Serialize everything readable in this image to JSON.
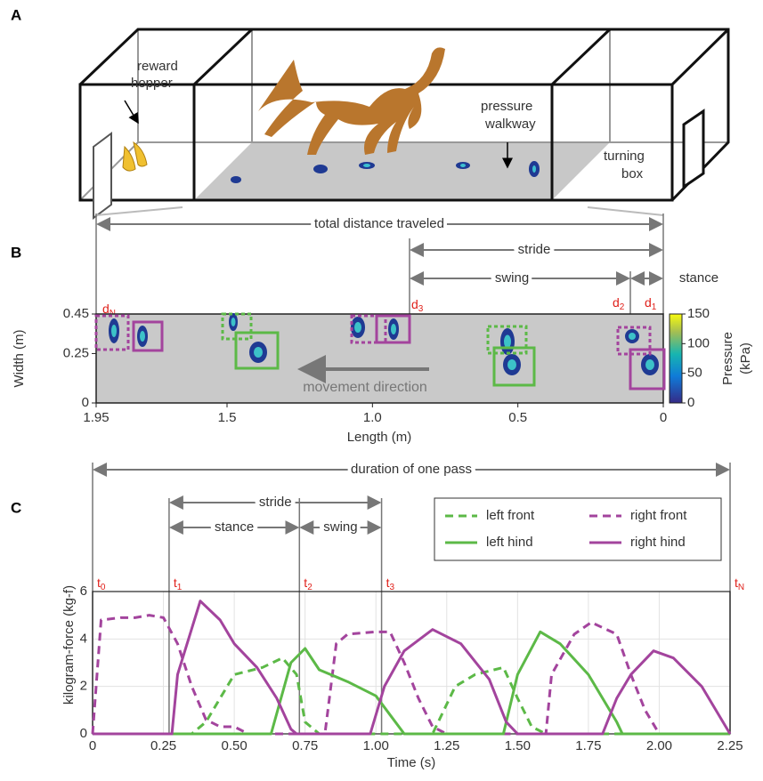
{
  "panel_a": {
    "panel_label": "A",
    "reward_hopper": [
      "reward",
      "hopper"
    ],
    "pressure_walkway": [
      "pressure",
      "walkway"
    ],
    "turning_box": [
      "turning",
      "box"
    ]
  },
  "panel_b": {
    "panel_label": "B",
    "total_distance": "total distance traveled",
    "stride": "stride",
    "swing": "swing",
    "stance": "stance",
    "markers": [
      {
        "text": "d",
        "sub": "N"
      },
      {
        "text": "d",
        "sub": "3"
      },
      {
        "text": "d",
        "sub": "2"
      },
      {
        "text": "d",
        "sub": "1"
      }
    ],
    "xlabel": "Length (m)",
    "ylabel": "Width (m)",
    "xlim": [
      1.95,
      0
    ],
    "xticks": [
      1.95,
      1.5,
      {
        "value": 1,
        "label": "1.0"
      },
      0.5,
      0
    ],
    "ylim": [
      0,
      0.45
    ],
    "yticks": [
      0,
      0.25,
      0.45
    ],
    "direction": "movement direction",
    "colorbar_label": [
      "Pressure",
      "(kPa)"
    ],
    "clim": [
      0,
      150
    ],
    "cticks": [
      0,
      50,
      100,
      150
    ]
  },
  "panel_c": {
    "panel_label": "C",
    "duration": "duration of one pass",
    "stride": "stride",
    "stance": "stance",
    "swing": "swing",
    "markers": [
      {
        "text": "t",
        "sub": "0",
        "x": 0
      },
      {
        "text": "t",
        "sub": "1",
        "x": 0.27
      },
      {
        "text": "t",
        "sub": "2",
        "x": 0.73
      },
      {
        "text": "t",
        "sub": "3",
        "x": 1.02
      },
      {
        "text": "t",
        "sub": "N",
        "x": 2.25
      }
    ]
  },
  "chart_data": {
    "type": "line",
    "xlabel": "Time (s)",
    "ylabel": "kilogram-force (kg-f)",
    "xlim": [
      0,
      2.25
    ],
    "ylim": [
      0,
      6
    ],
    "xticks": [
      0,
      0.25,
      {
        "value": 0.5,
        "label": "0.50"
      },
      0.75,
      {
        "value": 1,
        "label": "1.00"
      },
      1.25,
      {
        "value": 1.5,
        "label": "1.50"
      },
      1.75,
      {
        "value": 2,
        "label": "2.00"
      },
      2.25
    ],
    "yticks": [
      0,
      2,
      4,
      6
    ],
    "grid": true,
    "legend": "upper right",
    "series": [
      {
        "name": "left front",
        "color": "#5cb947",
        "dash": true,
        "x": [
          0,
          0.35,
          0.4,
          0.45,
          0.5,
          0.6,
          0.67,
          0.72,
          0.75,
          0.8,
          1.2,
          1.28,
          1.35,
          1.45,
          1.5,
          1.55,
          1.6,
          2.25
        ],
        "values": [
          0,
          0,
          0.5,
          1.5,
          2.5,
          2.8,
          3.2,
          2.5,
          0.5,
          0,
          0,
          2,
          2.5,
          2.8,
          1.5,
          0.3,
          0,
          0
        ]
      },
      {
        "name": "right front",
        "color": "#a3449d",
        "dash": true,
        "x": [
          0,
          0.03,
          0.1,
          0.15,
          0.2,
          0.25,
          0.3,
          0.35,
          0.4,
          0.45,
          0.5,
          0.55,
          0.82,
          0.86,
          0.9,
          1,
          1.05,
          1.1,
          1.15,
          1.2,
          1.25,
          1.6,
          1.62,
          1.7,
          1.76,
          1.85,
          1.9,
          1.95,
          2,
          2.25
        ],
        "values": [
          0,
          4.8,
          4.9,
          4.9,
          5,
          4.9,
          3.8,
          2,
          0.6,
          0.3,
          0.3,
          0,
          0,
          3.8,
          4.2,
          4.3,
          4.3,
          3,
          1.5,
          0.3,
          0,
          0,
          2.5,
          4.2,
          4.7,
          4.2,
          2.5,
          1,
          0,
          0
        ]
      },
      {
        "name": "left hind",
        "color": "#5cb947",
        "dash": false,
        "x": [
          0,
          0.63,
          0.7,
          0.75,
          0.8,
          0.9,
          1,
          1.05,
          1.1,
          1.45,
          1.5,
          1.58,
          1.65,
          1.75,
          1.85,
          1.87,
          2.25
        ],
        "values": [
          0,
          0,
          3,
          3.6,
          2.7,
          2.2,
          1.6,
          0.8,
          0,
          0,
          2.5,
          4.3,
          3.8,
          2.5,
          0.5,
          0,
          0
        ]
      },
      {
        "name": "right hind",
        "color": "#a3449d",
        "dash": false,
        "x": [
          0,
          0.28,
          0.3,
          0.38,
          0.45,
          0.5,
          0.58,
          0.65,
          0.7,
          0.72,
          0.98,
          1.03,
          1.1,
          1.2,
          1.3,
          1.4,
          1.46,
          1.5,
          1.8,
          1.85,
          1.9,
          1.98,
          2.05,
          2.15,
          2.25
        ],
        "values": [
          0,
          0,
          2.5,
          5.6,
          4.8,
          3.8,
          2.8,
          1.5,
          0.2,
          0,
          0,
          2,
          3.5,
          4.4,
          3.8,
          2.3,
          0.5,
          0,
          0,
          1.5,
          2.5,
          3.5,
          3.2,
          2,
          0
        ]
      }
    ]
  }
}
